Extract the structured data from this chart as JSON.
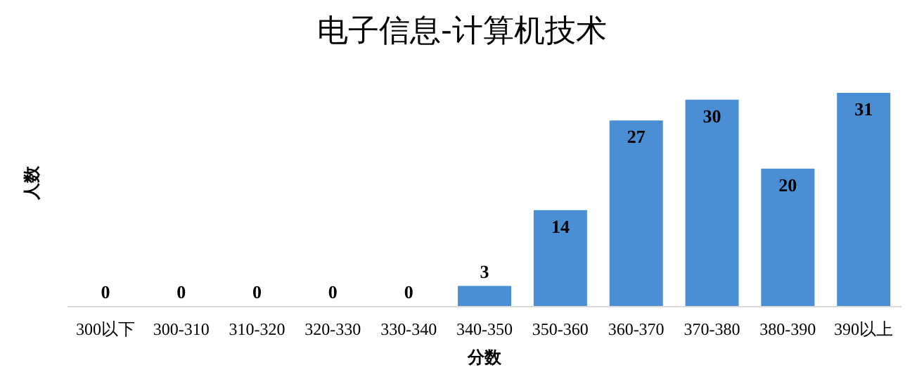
{
  "chart_data": {
    "type": "bar",
    "title": "电子信息-计算机技术",
    "xlabel": "分数",
    "ylabel": "人数",
    "categories": [
      "300以下",
      "300-310",
      "310-320",
      "320-330",
      "330-340",
      "340-350",
      "350-360",
      "360-370",
      "370-380",
      "380-390",
      "390以上"
    ],
    "values": [
      0,
      0,
      0,
      0,
      0,
      3,
      14,
      27,
      30,
      20,
      31
    ],
    "color": "#4a8fd4",
    "data_labels": true,
    "grid": false,
    "legend": false
  }
}
